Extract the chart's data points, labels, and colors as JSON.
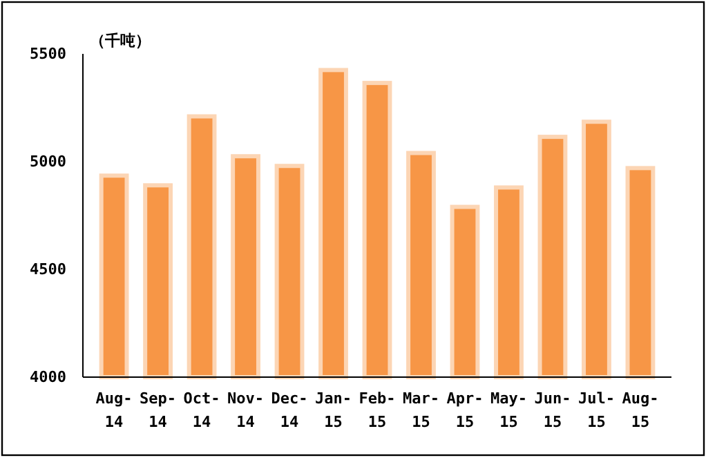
{
  "chart_data": {
    "type": "bar",
    "ylabel": "（千吨）",
    "categories": [
      "Aug-14",
      "Sep-14",
      "Oct-14",
      "Nov-14",
      "Dec-14",
      "Jan-15",
      "Feb-15",
      "Mar-15",
      "Apr-15",
      "May-15",
      "Jun-15",
      "Jul-15",
      "Aug-15"
    ],
    "values": [
      4935,
      4890,
      5210,
      5025,
      4980,
      5425,
      5365,
      5040,
      4790,
      4880,
      5115,
      5185,
      4970
    ],
    "color": "#f79646",
    "ylim": [
      4000,
      5500
    ],
    "yticks": [
      4000,
      4500,
      5000,
      5500
    ],
    "grid": false
  }
}
